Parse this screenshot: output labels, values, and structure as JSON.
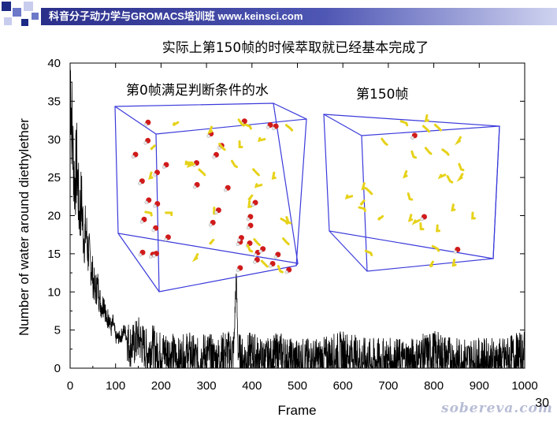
{
  "header": {
    "banner_text": "科音分子动力学与GROMACS培训班 www.keinsci.com",
    "accent_colors": [
      "#1c2a86",
      "#6c78c8",
      "#c8cdee"
    ]
  },
  "slide": {
    "title": "实际上第150帧的时候萃取就已经基本完成了",
    "page_number": "30",
    "watermark": "sobereva.com"
  },
  "insets": [
    {
      "label": "第0帧满足判断条件的水",
      "frame": 0,
      "molecules": "many"
    },
    {
      "label": "第150帧",
      "frame": 150,
      "molecules": "few"
    }
  ],
  "chart_data": {
    "type": "line",
    "title": "",
    "xlabel": "Frame",
    "ylabel": "Number of water around diethylether",
    "xlim": [
      0,
      1000
    ],
    "ylim": [
      0,
      40
    ],
    "xticks": [
      0,
      100,
      200,
      300,
      400,
      500,
      600,
      700,
      800,
      900,
      1000
    ],
    "yticks": [
      0,
      5,
      10,
      15,
      20,
      25,
      30,
      35,
      40
    ],
    "grid": false,
    "series": [
      {
        "color": "#000000",
        "x": [
          0,
          5,
          10,
          15,
          20,
          25,
          30,
          35,
          40,
          45,
          50,
          55,
          60,
          65,
          70,
          75,
          80,
          85,
          90,
          95,
          100,
          110,
          120,
          130,
          140,
          150,
          160,
          170,
          180,
          190,
          200,
          220,
          240,
          260,
          280,
          300,
          320,
          340,
          360,
          365,
          370,
          380,
          400,
          420,
          440,
          460,
          480,
          500,
          550,
          600,
          650,
          700,
          750,
          800,
          850,
          900,
          950,
          1000
        ],
        "y": [
          40,
          30,
          24,
          27,
          20,
          22,
          17,
          18,
          15,
          14,
          12,
          10,
          11,
          9,
          8,
          9,
          6,
          7,
          5,
          6,
          4,
          4,
          5,
          3,
          3,
          4,
          3,
          2,
          3,
          2,
          2,
          2,
          1,
          2,
          1,
          2,
          1,
          2,
          2,
          12,
          2,
          1,
          2,
          1,
          1,
          2,
          1,
          1,
          1,
          2,
          1,
          1,
          1,
          2,
          1,
          1,
          1,
          2
        ]
      }
    ]
  }
}
